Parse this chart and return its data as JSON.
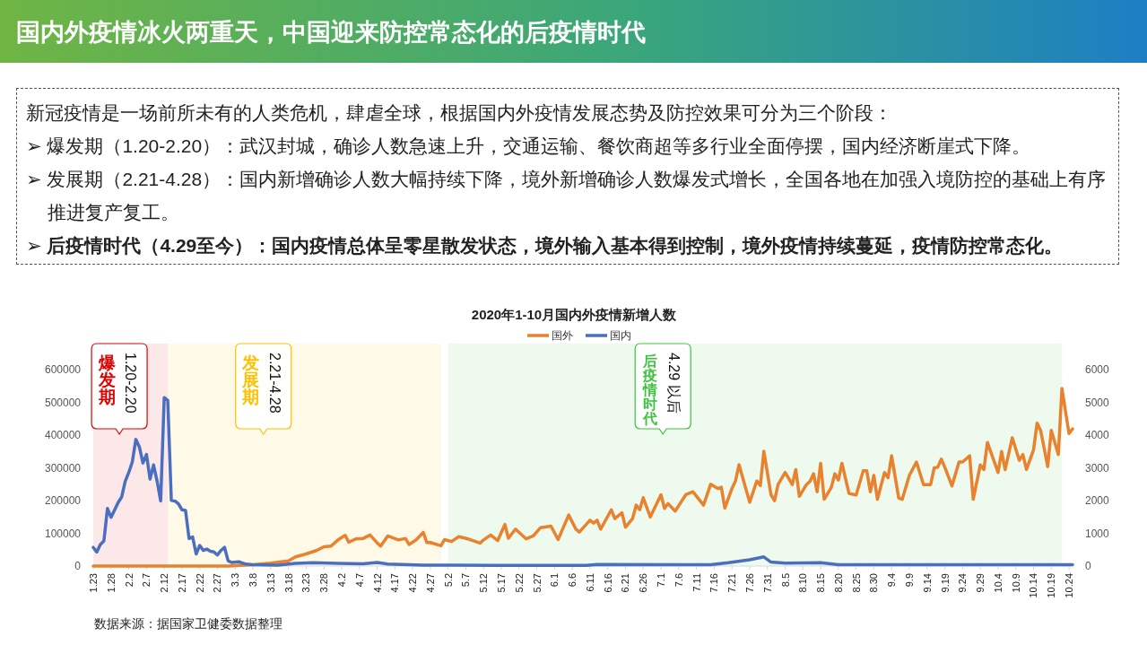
{
  "chart_data": {
    "type": "line",
    "title": "国内外疫情冰火两重天，中国迎来防控常态化的后疫情时代",
    "subtitle": "2020年1-10月国内外疫情新增人数",
    "legend": "top",
    "xlim": [
      "2020-01-23",
      "2020-10-25"
    ],
    "xticks": [
      {
        "value": "2020-01-23",
        "label": "1.23"
      },
      {
        "value": "2020-01-28",
        "label": "1.28"
      },
      {
        "value": "2020-02-02",
        "label": "2.2"
      },
      {
        "value": "2020-02-07",
        "label": "2.7"
      },
      {
        "value": "2020-02-12",
        "label": "2.12"
      },
      {
        "value": "2020-02-17",
        "label": "2.17"
      },
      {
        "value": "2020-02-22",
        "label": "2.22"
      },
      {
        "value": "2020-02-27",
        "label": "2.27"
      },
      {
        "value": "2020-03-03",
        "label": "3.3"
      },
      {
        "value": "2020-03-08",
        "label": "3.8"
      },
      {
        "value": "2020-03-13",
        "label": "3.13"
      },
      {
        "value": "2020-03-18",
        "label": "3.18"
      },
      {
        "value": "2020-03-23",
        "label": "3.23"
      },
      {
        "value": "2020-03-28",
        "label": "3.28"
      },
      {
        "value": "2020-04-02",
        "label": "4.2"
      },
      {
        "value": "2020-04-07",
        "label": "4.7"
      },
      {
        "value": "2020-04-12",
        "label": "4.12"
      },
      {
        "value": "2020-04-17",
        "label": "4.17"
      },
      {
        "value": "2020-04-22",
        "label": "4.22"
      },
      {
        "value": "2020-04-27",
        "label": "4.27"
      },
      {
        "value": "2020-05-02",
        "label": "5.2"
      },
      {
        "value": "2020-05-07",
        "label": "5.7"
      },
      {
        "value": "2020-05-12",
        "label": "5.12"
      },
      {
        "value": "2020-05-17",
        "label": "5.17"
      },
      {
        "value": "2020-05-22",
        "label": "5.22"
      },
      {
        "value": "2020-05-27",
        "label": "5.27"
      },
      {
        "value": "2020-06-01",
        "label": "6.1"
      },
      {
        "value": "2020-06-06",
        "label": "6.6"
      },
      {
        "value": "2020-06-11",
        "label": "6.11"
      },
      {
        "value": "2020-06-16",
        "label": "6.16"
      },
      {
        "value": "2020-06-21",
        "label": "6.21"
      },
      {
        "value": "2020-06-26",
        "label": "6.26"
      },
      {
        "value": "2020-07-01",
        "label": "7.1"
      },
      {
        "value": "2020-07-06",
        "label": "7.6"
      },
      {
        "value": "2020-07-11",
        "label": "7.11"
      },
      {
        "value": "2020-07-16",
        "label": "7.16"
      },
      {
        "value": "2020-07-21",
        "label": "7.21"
      },
      {
        "value": "2020-07-26",
        "label": "7.26"
      },
      {
        "value": "2020-07-31",
        "label": "7.31"
      },
      {
        "value": "2020-08-05",
        "label": "8.5"
      },
      {
        "value": "2020-08-10",
        "label": "8.10"
      },
      {
        "value": "2020-08-15",
        "label": "8.15"
      },
      {
        "value": "2020-08-20",
        "label": "8.20"
      },
      {
        "value": "2020-08-25",
        "label": "8.25"
      },
      {
        "value": "2020-08-30",
        "label": "8.30"
      },
      {
        "value": "2020-09-04",
        "label": "9.4"
      },
      {
        "value": "2020-09-09",
        "label": "9.9"
      },
      {
        "value": "2020-09-14",
        "label": "9.14"
      },
      {
        "value": "2020-09-19",
        "label": "9.19"
      },
      {
        "value": "2020-09-24",
        "label": "9.24"
      },
      {
        "value": "2020-09-29",
        "label": "9.29"
      },
      {
        "value": "2020-10-04",
        "label": "10.4"
      },
      {
        "value": "2020-10-09",
        "label": "10.9"
      },
      {
        "value": "2020-10-14",
        "label": "10.14"
      },
      {
        "value": "2020-10-19",
        "label": "10.19"
      },
      {
        "value": "2020-10-24",
        "label": "10.24"
      }
    ],
    "ylim": [
      0,
      680000
    ],
    "yticks": [
      0,
      100000,
      200000,
      300000,
      400000,
      500000,
      600000
    ],
    "y2lim": [
      0,
      6800
    ],
    "y2ticks": [
      0,
      1000,
      2000,
      3000,
      4000,
      5000,
      6000
    ],
    "bands": [
      {
        "axis": "x",
        "from": "2020-01-23",
        "to": "2020-02-13",
        "label": "爆发期",
        "color": "#e00000"
      },
      {
        "axis": "x",
        "from": "2020-02-13",
        "to": "2020-04-30",
        "label": "发展期",
        "color": "#ffc000"
      },
      {
        "axis": "x",
        "from": "2020-05-02",
        "to": "2020-10-22",
        "label": "后疫情时代",
        "color": "#3cc43c"
      }
    ],
    "annotations": [
      "1.20-2.20",
      "2.21-4.28",
      "4.29 以后",
      "新冠疫情是一场前所未有的人类危机，肆虐全球，根据国内外疫情发展态势及防控效果可分为三个阶段：",
      "➢ 爆发期（1.20-2.20）：武汉封城，确诊人数急速上升，交通运输、餐饮商超等多行业全面停摆，国内经济断崖式下降。",
      "➢ 发展期（2.21-4.28）：国内新增确诊人数大幅持续下降，境外新增确诊人数爆发式增长，全国各地在加强入境防控的基础上有序推进复产复工。",
      "➢ 后疫情时代（4.29至今）：国内疫情总体呈零星散发状态，境外输入基本得到控制，境外疫情持续蔓延，疫情防控常态化。",
      "数据来源：据国家卫健委数据整理"
    ],
    "series": [
      {
        "name": "国外",
        "color": "#e8822e",
        "x": [
          "2020-01-23",
          "2020-03-01",
          "2020-03-08",
          "2020-03-13",
          "2020-03-18",
          "2020-03-20",
          "2020-03-23",
          "2020-03-26",
          "2020-03-28",
          "2020-03-30",
          "2020-04-01",
          "2020-04-03",
          "2020-04-04",
          "2020-04-06",
          "2020-04-08",
          "2020-04-10",
          "2020-04-12",
          "2020-04-13",
          "2020-04-15",
          "2020-04-18",
          "2020-04-20",
          "2020-04-21",
          "2020-04-23",
          "2020-04-25",
          "2020-04-26",
          "2020-04-27",
          "2020-04-30",
          "2020-05-01",
          "2020-05-03",
          "2020-05-05",
          "2020-05-07",
          "2020-05-09",
          "2020-05-11",
          "2020-05-12",
          "2020-05-14",
          "2020-05-16",
          "2020-05-18",
          "2020-05-19",
          "2020-05-21",
          "2020-05-24",
          "2020-05-26",
          "2020-05-28",
          "2020-05-31",
          "2020-06-02",
          "2020-06-05",
          "2020-06-07",
          "2020-06-08",
          "2020-06-11",
          "2020-06-12",
          "2020-06-13",
          "2020-06-14",
          "2020-06-17",
          "2020-06-18",
          "2020-06-20",
          "2020-06-21",
          "2020-06-23",
          "2020-06-24",
          "2020-06-25",
          "2020-06-26",
          "2020-06-28",
          "2020-07-01",
          "2020-07-02",
          "2020-07-03",
          "2020-07-05",
          "2020-07-08",
          "2020-07-10",
          "2020-07-13",
          "2020-07-15",
          "2020-07-17",
          "2020-07-18",
          "2020-07-19",
          "2020-07-21",
          "2020-07-22",
          "2020-07-23",
          "2020-07-26",
          "2020-07-28",
          "2020-07-29",
          "2020-07-30",
          "2020-08-01",
          "2020-08-02",
          "2020-08-03",
          "2020-08-05",
          "2020-08-07",
          "2020-08-08",
          "2020-08-09",
          "2020-08-11",
          "2020-08-12",
          "2020-08-13",
          "2020-08-14",
          "2020-08-15",
          "2020-08-16",
          "2020-08-18",
          "2020-08-19",
          "2020-08-20",
          "2020-08-21",
          "2020-08-23",
          "2020-08-25",
          "2020-08-27",
          "2020-08-28",
          "2020-08-29",
          "2020-08-30",
          "2020-08-31",
          "2020-09-02",
          "2020-09-03",
          "2020-09-04",
          "2020-09-06",
          "2020-09-07",
          "2020-09-09",
          "2020-09-11",
          "2020-09-13",
          "2020-09-15",
          "2020-09-16",
          "2020-09-17",
          "2020-09-18",
          "2020-09-19",
          "2020-09-21",
          "2020-09-23",
          "2020-09-24",
          "2020-09-26",
          "2020-09-27",
          "2020-09-29",
          "2020-09-30",
          "2020-10-01",
          "2020-10-04",
          "2020-10-05",
          "2020-10-06",
          "2020-10-08",
          "2020-10-10",
          "2020-10-11",
          "2020-10-12",
          "2020-10-14",
          "2020-10-15",
          "2020-10-16",
          "2020-10-18",
          "2020-10-19",
          "2020-10-21",
          "2020-10-22",
          "2020-10-24",
          "2020-10-25"
        ],
        "values": [
          0,
          0,
          4000,
          9000,
          16000,
          28000,
          37000,
          48000,
          59000,
          61000,
          80000,
          94000,
          73000,
          83000,
          84000,
          95000,
          71000,
          61000,
          92000,
          80000,
          84000,
          66000,
          80000,
          103000,
          72000,
          72000,
          62000,
          81000,
          75000,
          90000,
          85000,
          78000,
          70000,
          80000,
          95000,
          78000,
          127000,
          85000,
          113000,
          83000,
          92000,
          117000,
          122000,
          81000,
          156000,
          113000,
          104000,
          140000,
          131000,
          140000,
          113000,
          172000,
          145000,
          163000,
          119000,
          145000,
          186000,
          172000,
          209000,
          150000,
          218000,
          176000,
          191000,
          168000,
          218000,
          227000,
          186000,
          250000,
          237000,
          241000,
          177000,
          237000,
          260000,
          310000,
          195000,
          260000,
          246000,
          351000,
          218000,
          200000,
          249000,
          286000,
          249000,
          295000,
          213000,
          249000,
          259000,
          282000,
          227000,
          314000,
          204000,
          240000,
          282000,
          263000,
          314000,
          222000,
          217000,
          291000,
          291000,
          227000,
          277000,
          204000,
          286000,
          270000,
          337000,
          208000,
          204000,
          277000,
          318000,
          249000,
          249000,
          300000,
          302000,
          327000,
          302000,
          245000,
          318000,
          318000,
          337000,
          204000,
          309000,
          295000,
          378000,
          286000,
          350000,
          295000,
          392000,
          323000,
          341000,
          295000,
          355000,
          437000,
          415000,
          304000,
          415000,
          341000,
          543000,
          405000,
          419000
        ]
      },
      {
        "name": "国内",
        "color": "#4a6fbf",
        "axis": "y2",
        "x": [
          "2020-01-23",
          "2020-01-24",
          "2020-01-25",
          "2020-01-26",
          "2020-01-27",
          "2020-01-28",
          "2020-01-29",
          "2020-01-30",
          "2020-01-31",
          "2020-02-01",
          "2020-02-02",
          "2020-02-03",
          "2020-02-04",
          "2020-02-05",
          "2020-02-06",
          "2020-02-07",
          "2020-02-08",
          "2020-02-09",
          "2020-02-10",
          "2020-02-11",
          "2020-02-12",
          "2020-02-13",
          "2020-02-14",
          "2020-02-15",
          "2020-02-16",
          "2020-02-17",
          "2020-02-18",
          "2020-02-19",
          "2020-02-20",
          "2020-02-21",
          "2020-02-22",
          "2020-02-23",
          "2020-02-24",
          "2020-02-25",
          "2020-02-26",
          "2020-02-27",
          "2020-02-28",
          "2020-02-29",
          "2020-03-01",
          "2020-03-02",
          "2020-03-04",
          "2020-03-06",
          "2020-03-08",
          "2020-03-15",
          "2020-03-20",
          "2020-03-25",
          "2020-04-01",
          "2020-04-08",
          "2020-04-12",
          "2020-04-15",
          "2020-04-25",
          "2020-05-15",
          "2020-06-10",
          "2020-06-13",
          "2020-07-15",
          "2020-07-20",
          "2020-07-26",
          "2020-07-30",
          "2020-08-01",
          "2020-08-05",
          "2020-08-15",
          "2020-08-20",
          "2020-10-25"
        ],
        "values": [
          570,
          430,
          660,
          770,
          1760,
          1490,
          1710,
          1940,
          2110,
          2590,
          2860,
          3180,
          3870,
          3640,
          3150,
          3410,
          2660,
          3090,
          2590,
          1990,
          5150,
          5060,
          2010,
          1990,
          1900,
          1720,
          1700,
          840,
          890,
          370,
          630,
          480,
          520,
          450,
          430,
          340,
          480,
          570,
          160,
          110,
          130,
          60,
          40,
          30,
          80,
          100,
          80,
          70,
          110,
          60,
          30,
          20,
          20,
          50,
          40,
          100,
          190,
          280,
          120,
          90,
          100,
          40,
          40
        ]
      }
    ]
  }
}
